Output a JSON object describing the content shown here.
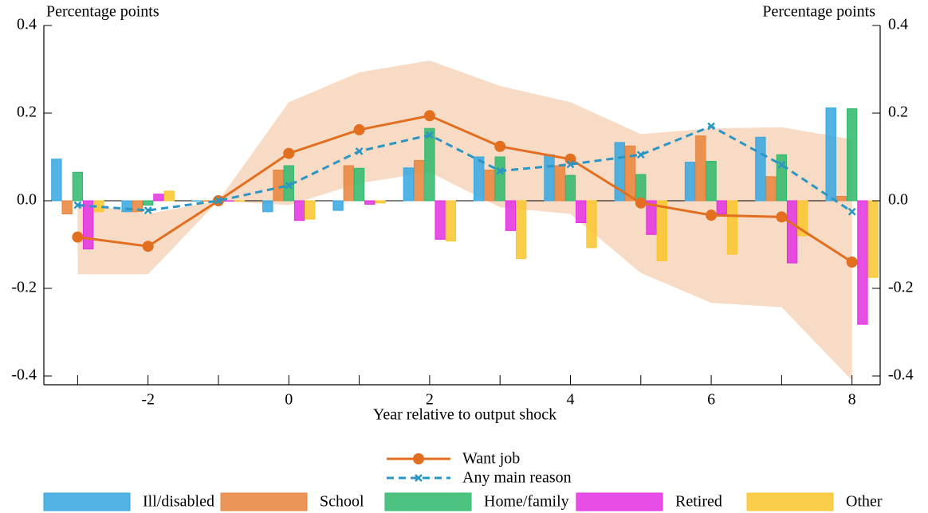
{
  "chart_data": {
    "type": "bar",
    "xlabel": "Year relative to output shock",
    "ylabel": "Percentage points",
    "y2label": "Percentage points",
    "x": [
      -3,
      -2,
      -1,
      0,
      1,
      2,
      3,
      4,
      5,
      6,
      7,
      8
    ],
    "xlim": [
      -3.48,
      8.4
    ],
    "xticks": [
      -2,
      0,
      2,
      4,
      6,
      8
    ],
    "xminor_ticks": [
      -3,
      -1,
      1,
      3,
      5,
      7
    ],
    "ylim": [
      -0.42,
      0.4
    ],
    "yticks": [
      -0.4,
      -0.2,
      {
        "value": 0,
        "label": "0.0"
      },
      0.2,
      0.4
    ],
    "grid": false,
    "band": {
      "color": "#f6cfb2",
      "upper": [
        -0.005,
        -0.03,
        0,
        0.225,
        0.293,
        0.32,
        0.262,
        0.225,
        0.152,
        0.165,
        0.168,
        0.14
      ],
      "lower": [
        -0.168,
        -0.168,
        0,
        -0.01,
        0.04,
        0.065,
        -0.015,
        -0.03,
        -0.165,
        -0.233,
        -0.243,
        -0.41
      ]
    },
    "series": [
      {
        "name": "Ill/disabled",
        "color": "#35a6df",
        "values": [
          0.095,
          -0.025,
          0,
          -0.025,
          -0.022,
          0.075,
          0.1,
          0.105,
          0.133,
          0.088,
          0.145,
          0.212
        ]
      },
      {
        "name": "School",
        "color": "#e8843b",
        "values": [
          -0.03,
          -0.025,
          0,
          0.07,
          0.08,
          0.092,
          0.07,
          0.08,
          0.125,
          0.148,
          0.055,
          0.01
        ]
      },
      {
        "name": "Home/family",
        "color": "#2fb86b",
        "values": [
          0.065,
          -0.01,
          0,
          0.08,
          0.074,
          0.165,
          0.1,
          0.058,
          0.06,
          0.09,
          0.105,
          0.21
        ]
      },
      {
        "name": "Retired",
        "color": "#e22fe0",
        "values": [
          -0.11,
          0.015,
          0,
          -0.045,
          -0.008,
          -0.088,
          -0.068,
          -0.05,
          -0.077,
          -0.03,
          -0.142,
          -0.282
        ]
      },
      {
        "name": "Other",
        "color": "#f9c62c",
        "values": [
          -0.025,
          0.022,
          0,
          -0.042,
          -0.005,
          -0.092,
          -0.132,
          -0.107,
          -0.137,
          -0.122,
          -0.08,
          -0.175
        ]
      },
      {
        "name": "Want job",
        "type": "line",
        "marker": "circle",
        "color": "#e26f1f",
        "values": [
          -0.083,
          -0.104,
          0,
          0.108,
          0.162,
          0.194,
          0.124,
          0.095,
          -0.005,
          -0.033,
          -0.037,
          -0.14
        ]
      },
      {
        "name": "Any main reason",
        "type": "line",
        "marker": "x",
        "dash": true,
        "color": "#2b95c3",
        "values": [
          -0.01,
          -0.022,
          0,
          0.035,
          0.113,
          0.15,
          0.068,
          0.083,
          0.105,
          0.17,
          0.082,
          -0.025
        ]
      }
    ]
  }
}
